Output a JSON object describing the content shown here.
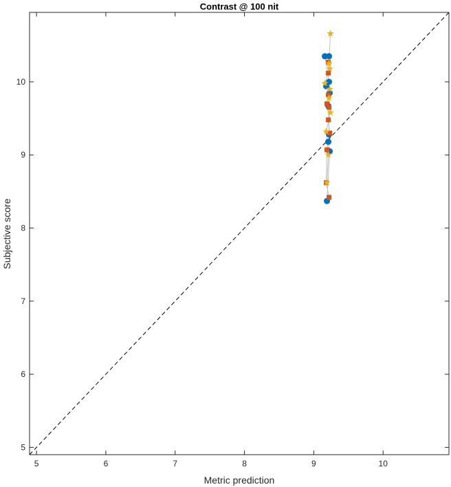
{
  "chart_data": {
    "type": "scatter",
    "title": "Contrast @ 100 nit",
    "xlabel": "Metric prediction",
    "ylabel": "Subjective score",
    "xlim": [
      4.9,
      10.95
    ],
    "ylim": [
      4.9,
      10.95
    ],
    "xticks": [
      5,
      6,
      7,
      8,
      9,
      10
    ],
    "yticks": [
      5,
      6,
      7,
      8,
      9,
      10
    ],
    "grid": false,
    "reference_line": {
      "from": [
        4.9,
        4.9
      ],
      "to": [
        10.95,
        10.95
      ],
      "style": "dashed",
      "color": "#000000"
    },
    "series": [
      {
        "marker": "circle",
        "color": "#0072BD",
        "points": [
          [
            9.16,
            10.35
          ],
          [
            9.22,
            10.35
          ],
          [
            9.22,
            10.0
          ],
          [
            9.23,
            9.85
          ],
          [
            9.18,
            9.94
          ],
          [
            9.21,
            9.67
          ],
          [
            9.22,
            9.28
          ],
          [
            9.21,
            9.18
          ],
          [
            9.23,
            9.05
          ],
          [
            9.19,
            8.37
          ]
        ]
      },
      {
        "marker": "square",
        "color": "#D95319",
        "points": [
          [
            9.21,
            10.27
          ],
          [
            9.21,
            10.12
          ],
          [
            9.21,
            9.82
          ],
          [
            9.19,
            9.7
          ],
          [
            9.22,
            9.65
          ],
          [
            9.21,
            9.48
          ],
          [
            9.23,
            9.3
          ],
          [
            9.19,
            9.07
          ],
          [
            9.18,
            8.62
          ],
          [
            9.22,
            8.42
          ]
        ]
      },
      {
        "marker": "star",
        "color": "#EDB120",
        "points": [
          [
            9.24,
            10.66
          ],
          [
            9.22,
            10.25
          ],
          [
            9.23,
            10.18
          ],
          [
            9.16,
            9.98
          ],
          [
            9.23,
            9.9
          ],
          [
            9.22,
            9.78
          ],
          [
            9.24,
            9.58
          ],
          [
            9.18,
            9.32
          ],
          [
            9.21,
            9.0
          ],
          [
            9.19,
            8.62
          ]
        ]
      }
    ],
    "connector_color": "#c0c0c0"
  }
}
